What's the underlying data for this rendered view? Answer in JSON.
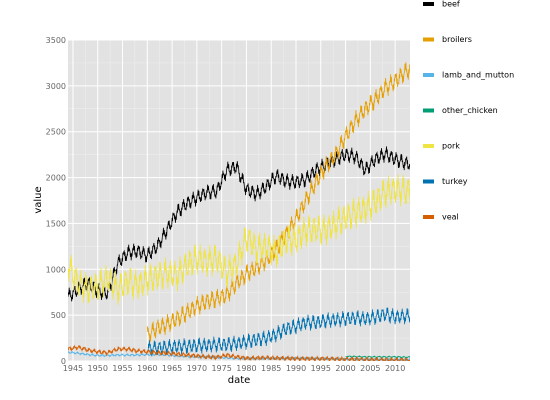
{
  "chart_data": {
    "type": "line",
    "xlabel": "date",
    "ylabel": "value",
    "xlim": [
      1944,
      2013
    ],
    "ylim": [
      0,
      3500
    ],
    "x_ticks": [
      1945,
      1950,
      1955,
      1960,
      1965,
      1970,
      1975,
      1980,
      1985,
      1990,
      1995,
      2000,
      2005,
      2010
    ],
    "y_ticks": [
      0,
      500,
      1000,
      1500,
      2000,
      2500,
      3000,
      3500
    ],
    "grid": true,
    "legend_position": "right",
    "series": [
      {
        "name": "beef",
        "color": "#000000",
        "amplitude": 90,
        "points": [
          [
            1944,
            700
          ],
          [
            1946,
            780
          ],
          [
            1948,
            850
          ],
          [
            1950,
            760
          ],
          [
            1952,
            740
          ],
          [
            1954,
            1060
          ],
          [
            1956,
            1180
          ],
          [
            1958,
            1200
          ],
          [
            1960,
            1150
          ],
          [
            1962,
            1250
          ],
          [
            1964,
            1430
          ],
          [
            1966,
            1620
          ],
          [
            1968,
            1720
          ],
          [
            1970,
            1780
          ],
          [
            1972,
            1840
          ],
          [
            1974,
            1850
          ],
          [
            1976,
            2080
          ],
          [
            1978,
            2120
          ],
          [
            1980,
            1870
          ],
          [
            1982,
            1820
          ],
          [
            1984,
            1900
          ],
          [
            1986,
            2020
          ],
          [
            1988,
            1960
          ],
          [
            1990,
            1950
          ],
          [
            1992,
            1980
          ],
          [
            1994,
            2080
          ],
          [
            1996,
            2140
          ],
          [
            1998,
            2200
          ],
          [
            2000,
            2250
          ],
          [
            2002,
            2230
          ],
          [
            2004,
            2080
          ],
          [
            2006,
            2200
          ],
          [
            2008,
            2260
          ],
          [
            2010,
            2200
          ],
          [
            2012,
            2160
          ],
          [
            2013,
            2150
          ]
        ]
      },
      {
        "name": "broilers",
        "color": "#E69F00",
        "amplitude": 110,
        "points": [
          [
            1960,
            280
          ],
          [
            1962,
            360
          ],
          [
            1964,
            400
          ],
          [
            1966,
            460
          ],
          [
            1968,
            530
          ],
          [
            1970,
            600
          ],
          [
            1972,
            650
          ],
          [
            1974,
            680
          ],
          [
            1976,
            720
          ],
          [
            1978,
            850
          ],
          [
            1980,
            950
          ],
          [
            1982,
            1020
          ],
          [
            1984,
            1100
          ],
          [
            1986,
            1220
          ],
          [
            1988,
            1380
          ],
          [
            1990,
            1550
          ],
          [
            1992,
            1750
          ],
          [
            1994,
            1950
          ],
          [
            1996,
            2120
          ],
          [
            1998,
            2250
          ],
          [
            2000,
            2450
          ],
          [
            2002,
            2620
          ],
          [
            2004,
            2750
          ],
          [
            2006,
            2850
          ],
          [
            2008,
            2980
          ],
          [
            2010,
            3050
          ],
          [
            2012,
            3150
          ],
          [
            2013,
            3180
          ]
        ]
      },
      {
        "name": "lamb_and_mutton",
        "color": "#56B4E9",
        "amplitude": 12,
        "points": [
          [
            1944,
            95
          ],
          [
            1946,
            85
          ],
          [
            1948,
            70
          ],
          [
            1950,
            60
          ],
          [
            1952,
            60
          ],
          [
            1954,
            65
          ],
          [
            1956,
            65
          ],
          [
            1958,
            65
          ],
          [
            1960,
            70
          ],
          [
            1962,
            70
          ],
          [
            1964,
            65
          ],
          [
            1966,
            55
          ],
          [
            1968,
            50
          ],
          [
            1970,
            45
          ],
          [
            1972,
            45
          ],
          [
            1974,
            40
          ],
          [
            1976,
            35
          ],
          [
            1978,
            28
          ],
          [
            1980,
            27
          ],
          [
            1985,
            28
          ],
          [
            1990,
            30
          ],
          [
            1995,
            25
          ],
          [
            2000,
            20
          ],
          [
            2005,
            16
          ],
          [
            2010,
            14
          ],
          [
            2013,
            13
          ]
        ]
      },
      {
        "name": "other_chicken",
        "color": "#009E73",
        "amplitude": 8,
        "points": [
          [
            2000,
            50
          ],
          [
            2002,
            48
          ],
          [
            2004,
            45
          ],
          [
            2006,
            45
          ],
          [
            2008,
            45
          ],
          [
            2010,
            45
          ],
          [
            2012,
            42
          ],
          [
            2013,
            42
          ]
        ]
      },
      {
        "name": "pork",
        "color": "#F0E442",
        "amplitude": 180,
        "points": [
          [
            1944,
            1050
          ],
          [
            1946,
            850
          ],
          [
            1948,
            780
          ],
          [
            1950,
            820
          ],
          [
            1952,
            900
          ],
          [
            1954,
            780
          ],
          [
            1956,
            870
          ],
          [
            1958,
            820
          ],
          [
            1960,
            890
          ],
          [
            1962,
            920
          ],
          [
            1964,
            960
          ],
          [
            1966,
            930
          ],
          [
            1968,
            1050
          ],
          [
            1970,
            1120
          ],
          [
            1972,
            1080
          ],
          [
            1974,
            1120
          ],
          [
            1976,
            960
          ],
          [
            1978,
            1060
          ],
          [
            1980,
            1350
          ],
          [
            1982,
            1220
          ],
          [
            1984,
            1250
          ],
          [
            1986,
            1180
          ],
          [
            1988,
            1320
          ],
          [
            1990,
            1320
          ],
          [
            1992,
            1420
          ],
          [
            1994,
            1440
          ],
          [
            1996,
            1420
          ],
          [
            1998,
            1500
          ],
          [
            2000,
            1560
          ],
          [
            2002,
            1620
          ],
          [
            2004,
            1660
          ],
          [
            2006,
            1730
          ],
          [
            2008,
            1840
          ],
          [
            2010,
            1870
          ],
          [
            2012,
            1860
          ],
          [
            2013,
            1850
          ]
        ]
      },
      {
        "name": "turkey",
        "color": "#0072B2",
        "amplitude": 90,
        "points": [
          [
            1960,
            140
          ],
          [
            1962,
            140
          ],
          [
            1964,
            150
          ],
          [
            1966,
            160
          ],
          [
            1968,
            160
          ],
          [
            1970,
            170
          ],
          [
            1972,
            170
          ],
          [
            1974,
            180
          ],
          [
            1976,
            180
          ],
          [
            1978,
            190
          ],
          [
            1980,
            210
          ],
          [
            1982,
            230
          ],
          [
            1984,
            250
          ],
          [
            1986,
            290
          ],
          [
            1988,
            350
          ],
          [
            1990,
            380
          ],
          [
            1992,
            420
          ],
          [
            1994,
            420
          ],
          [
            1996,
            440
          ],
          [
            1998,
            450
          ],
          [
            2000,
            460
          ],
          [
            2002,
            470
          ],
          [
            2004,
            460
          ],
          [
            2006,
            480
          ],
          [
            2008,
            510
          ],
          [
            2010,
            480
          ],
          [
            2012,
            490
          ],
          [
            2013,
            495
          ]
        ]
      },
      {
        "name": "veal",
        "color": "#D55E00",
        "amplitude": 25,
        "points": [
          [
            1944,
            130
          ],
          [
            1946,
            150
          ],
          [
            1948,
            120
          ],
          [
            1950,
            100
          ],
          [
            1952,
            90
          ],
          [
            1954,
            130
          ],
          [
            1956,
            130
          ],
          [
            1958,
            110
          ],
          [
            1960,
            100
          ],
          [
            1962,
            90
          ],
          [
            1964,
            85
          ],
          [
            1966,
            75
          ],
          [
            1968,
            65
          ],
          [
            1970,
            55
          ],
          [
            1972,
            45
          ],
          [
            1974,
            40
          ],
          [
            1976,
            65
          ],
          [
            1978,
            45
          ],
          [
            1980,
            30
          ],
          [
            1984,
            35
          ],
          [
            1988,
            28
          ],
          [
            1992,
            25
          ],
          [
            1996,
            25
          ],
          [
            2000,
            20
          ],
          [
            2005,
            15
          ],
          [
            2010,
            12
          ],
          [
            2013,
            10
          ]
        ]
      }
    ]
  }
}
